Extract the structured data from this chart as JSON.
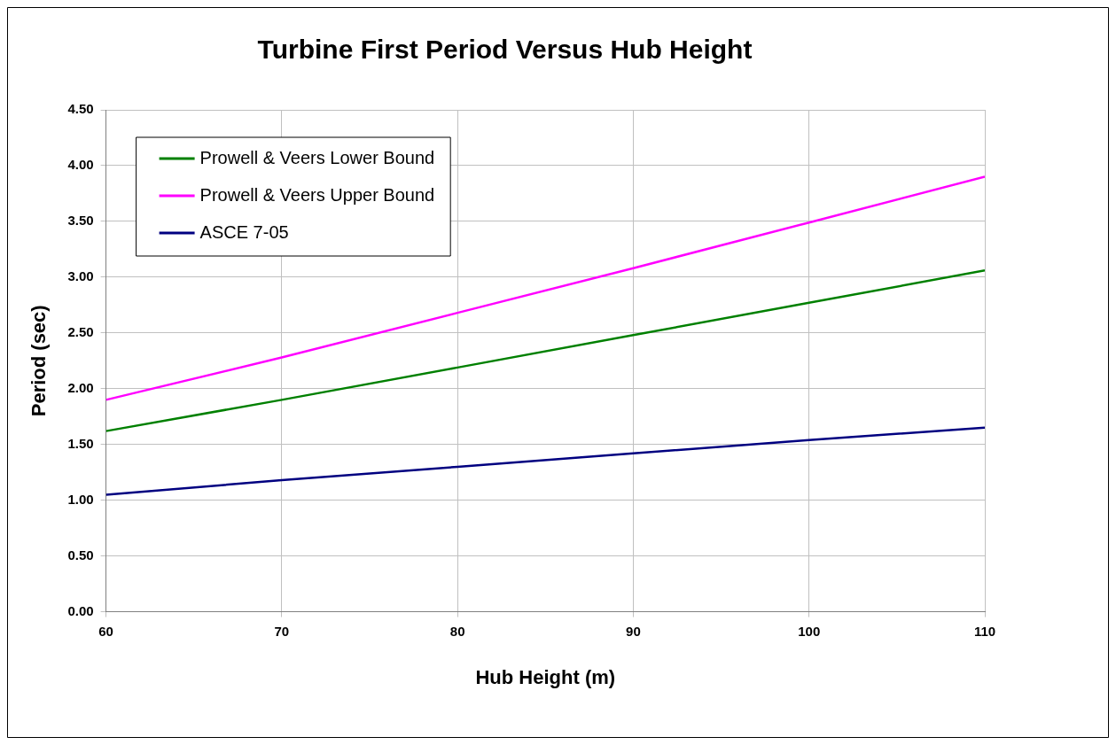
{
  "chart_data": {
    "type": "line",
    "title": "Turbine First Period Versus Hub Height",
    "xlabel": "Hub Height (m)",
    "ylabel": "Period (sec)",
    "x": [
      60,
      70,
      80,
      90,
      100,
      110
    ],
    "series": [
      {
        "name": "Prowell & Veers Lower Bound",
        "color": "#008000",
        "values": [
          1.62,
          1.9,
          2.19,
          2.48,
          2.77,
          3.06
        ]
      },
      {
        "name": "Prowell & Veers Upper Bound",
        "color": "#ff00ff",
        "values": [
          1.9,
          2.28,
          2.68,
          3.08,
          3.49,
          3.9
        ]
      },
      {
        "name": "ASCE 7-05",
        "color": "#000080",
        "values": [
          1.05,
          1.18,
          1.3,
          1.42,
          1.54,
          1.65
        ]
      }
    ],
    "xlim": [
      60,
      110
    ],
    "xticks": [
      60,
      70,
      80,
      90,
      100,
      110
    ],
    "ylim": [
      0,
      4.5
    ],
    "yticks": [
      {
        "value": 0,
        "label": "0.00"
      },
      {
        "value": 0.5,
        "label": "0.50"
      },
      {
        "value": 1,
        "label": "1.00"
      },
      {
        "value": 1.5,
        "label": "1.50"
      },
      {
        "value": 2,
        "label": "2.00"
      },
      {
        "value": 2.5,
        "label": "2.50"
      },
      {
        "value": 3,
        "label": "3.00"
      },
      {
        "value": 3.5,
        "label": "3.50"
      },
      {
        "value": 4,
        "label": "4.00"
      },
      {
        "value": 4.5,
        "label": "4.50"
      }
    ],
    "grid": true,
    "legend": "top left",
    "marker": "none",
    "line_style": "solid"
  }
}
